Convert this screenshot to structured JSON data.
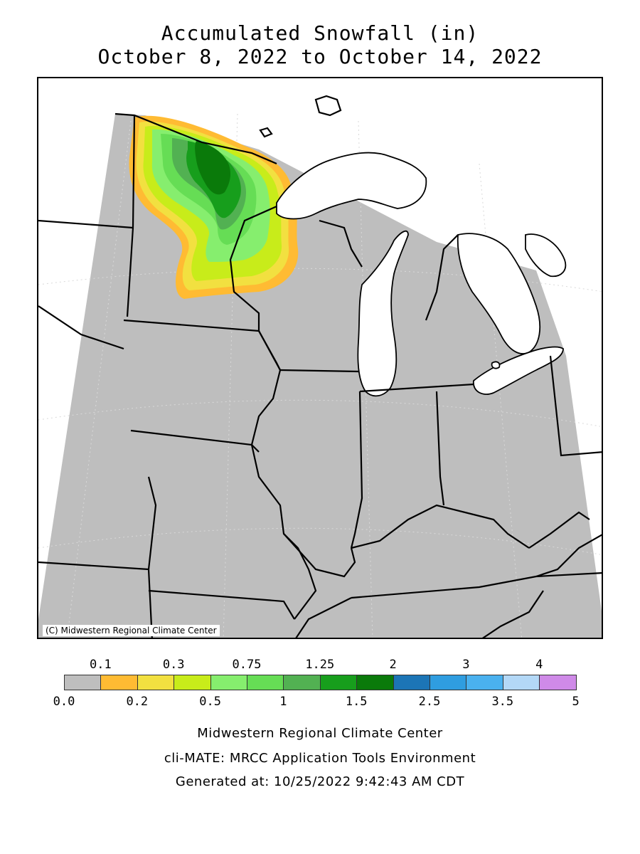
{
  "title": {
    "line1": "Accumulated Snowfall (in)",
    "line2": "October 8, 2022 to October 14, 2022"
  },
  "map": {
    "credit": "(C) Midwestern Regional Climate Center",
    "colors": {
      "land": "#bebebe",
      "water": "#ffffff",
      "border": "#000000",
      "grid": "#d9d9d9"
    }
  },
  "legend": {
    "top_labels": [
      {
        "idx": 1,
        "text": "0.1"
      },
      {
        "idx": 3,
        "text": "0.3"
      },
      {
        "idx": 5,
        "text": "0.75"
      },
      {
        "idx": 7,
        "text": "1.25"
      },
      {
        "idx": 9,
        "text": "2"
      },
      {
        "idx": 11,
        "text": "3"
      },
      {
        "idx": 13,
        "text": "4"
      }
    ],
    "bottom_labels": [
      {
        "idx": 0,
        "text": "0.0"
      },
      {
        "idx": 2,
        "text": "0.2"
      },
      {
        "idx": 4,
        "text": "0.5"
      },
      {
        "idx": 6,
        "text": "1"
      },
      {
        "idx": 8,
        "text": "1.5"
      },
      {
        "idx": 10,
        "text": "2.5"
      },
      {
        "idx": 12,
        "text": "3.5"
      },
      {
        "idx": 14,
        "text": "5"
      }
    ],
    "swatches": [
      "#bebebe",
      "#ffbb33",
      "#f2e040",
      "#c8ec1a",
      "#86ee6e",
      "#66dd55",
      "#52b152",
      "#179e1c",
      "#0a7a0a",
      "#1c75b6",
      "#2f9de0",
      "#4ab1ef",
      "#b3d8f7",
      "#cf8ae8"
    ]
  },
  "footer": {
    "line1": "Midwestern Regional Climate Center",
    "line2": "cli-MATE: MRCC Application Tools Environment",
    "line3": "Generated at: 10/25/2022 9:42:43 AM CDT"
  }
}
